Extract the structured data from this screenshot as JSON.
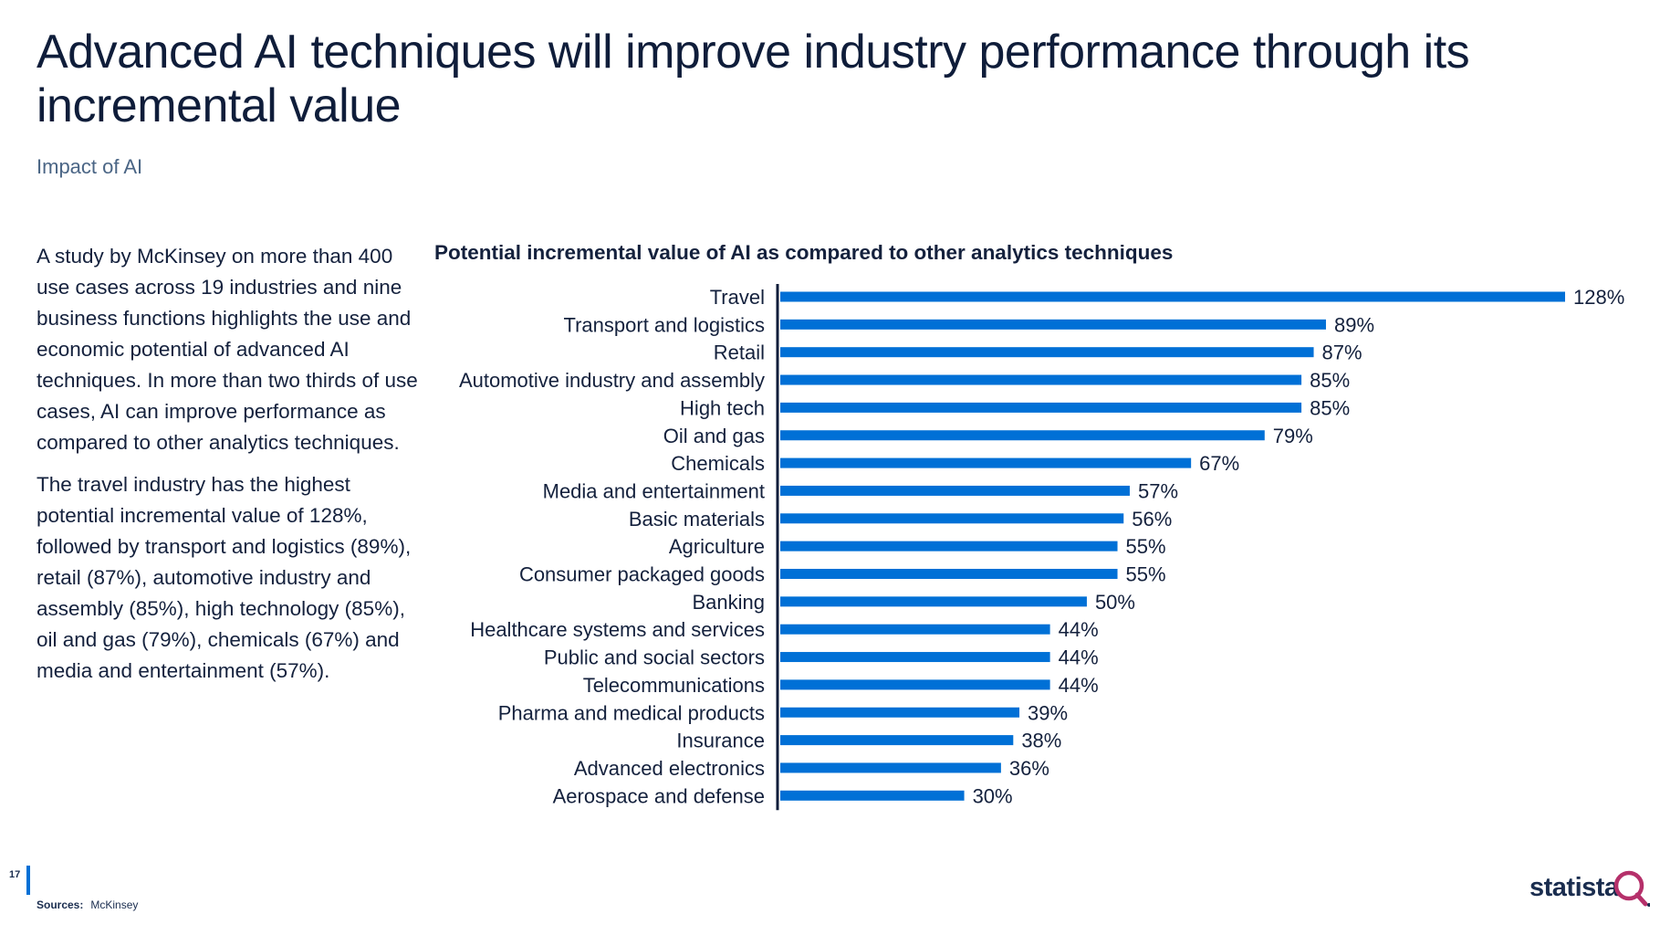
{
  "page": {
    "title": "Advanced AI techniques will improve industry performance through its incremental value",
    "subtitle": "Impact of AI",
    "paragraphs": [
      "A study by McKinsey on more than 400 use cases across 19 industries and nine business functions highlights the use and economic potential of advanced AI techniques. In more than two thirds of use cases, AI can improve performance as compared to other analytics techniques.",
      "The travel industry has the highest potential incremental value of 128%, followed by transport and logistics (89%), retail (87%), automotive industry and assembly (85%), high technology (85%), oil and gas (79%), chemicals (67%) and media and entertainment (57%)."
    ],
    "page_number": "17",
    "sources_label": "Sources:",
    "sources_value": "McKinsey",
    "logo_text": "statista"
  },
  "colors": {
    "bar": "#0070d6",
    "axis": "#0f1d3a",
    "text": "#14213d",
    "logo_accent": "#b5306a"
  },
  "chart_data": {
    "type": "bar",
    "orientation": "horizontal",
    "title": "Potential incremental value of AI as compared to other analytics techniques",
    "xlabel": "",
    "ylabel": "",
    "grid": false,
    "xlim": [
      0,
      128
    ],
    "value_suffix": "%",
    "categories": [
      "Travel",
      "Transport and logistics",
      "Retail",
      "Automotive industry and assembly",
      "High tech",
      "Oil and gas",
      "Chemicals",
      "Media and entertainment",
      "Basic materials",
      "Agriculture",
      "Consumer packaged goods",
      "Banking",
      "Healthcare systems and services",
      "Public and social sectors",
      "Telecommunications",
      "Pharma and medical products",
      "Insurance",
      "Advanced electronics",
      "Aerospace and defense"
    ],
    "values": [
      128,
      89,
      87,
      85,
      85,
      79,
      67,
      57,
      56,
      55,
      55,
      50,
      44,
      44,
      44,
      39,
      38,
      36,
      30
    ]
  }
}
